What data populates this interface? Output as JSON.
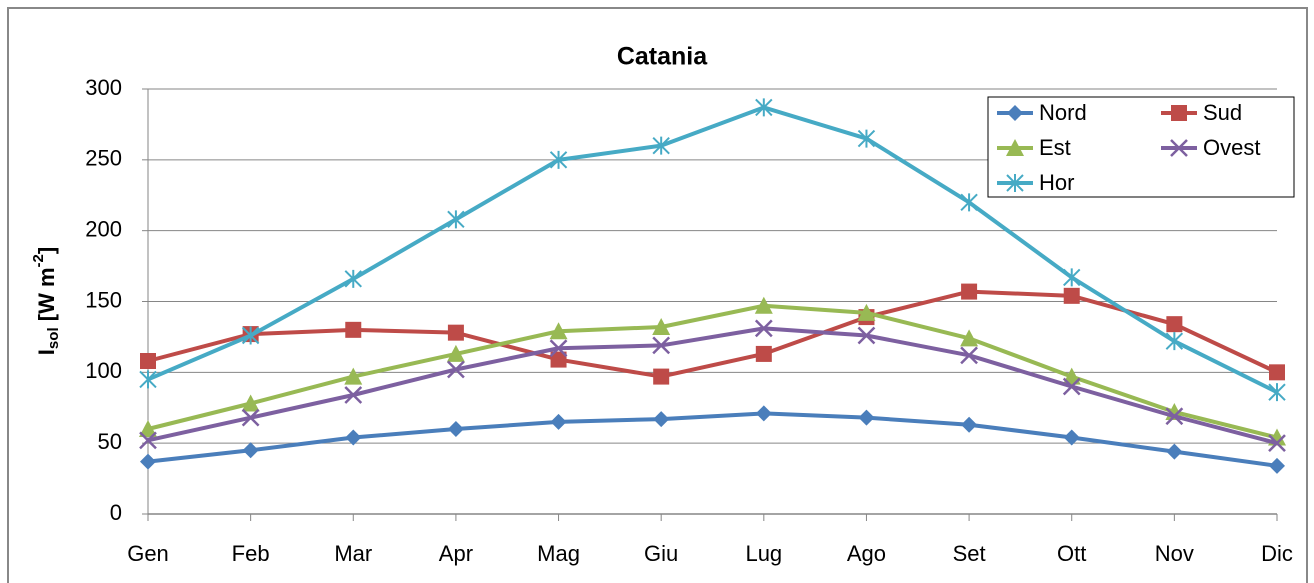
{
  "chart_data": {
    "type": "line",
    "title": "Catania",
    "y_label": {
      "text": "I",
      "sub": "sol",
      "mid": " [W m",
      "sup": "-2",
      "end": "]"
    },
    "categories": [
      "Gen",
      "Feb",
      "Mar",
      "Apr",
      "Mag",
      "Giu",
      "Lug",
      "Ago",
      "Set",
      "Ott",
      "Nov",
      "Dic"
    ],
    "series": [
      {
        "name": "Nord",
        "color": "#4a7ebb",
        "marker": "diamond",
        "values": [
          37,
          45,
          54,
          60,
          65,
          67,
          71,
          68,
          63,
          54,
          44,
          34
        ]
      },
      {
        "name": "Sud",
        "color": "#be4b48",
        "marker": "square",
        "values": [
          108,
          127,
          130,
          128,
          109,
          97,
          113,
          139,
          157,
          154,
          134,
          100
        ]
      },
      {
        "name": "Est",
        "color": "#98b954",
        "marker": "triangle",
        "values": [
          60,
          78,
          97,
          113,
          129,
          132,
          147,
          142,
          124,
          97,
          72,
          54
        ]
      },
      {
        "name": "Ovest",
        "color": "#7d60a0",
        "marker": "x",
        "values": [
          52,
          68,
          84,
          102,
          117,
          119,
          131,
          126,
          112,
          90,
          69,
          50
        ]
      },
      {
        "name": "Hor",
        "color": "#46aac5",
        "marker": "star",
        "values": [
          95,
          126,
          166,
          208,
          250,
          260,
          287,
          265,
          220,
          167,
          122,
          86
        ]
      }
    ],
    "ylim": [
      0,
      300
    ],
    "yticks": [
      0,
      50,
      100,
      150,
      200,
      250,
      300
    ],
    "grid": true,
    "legend": "top-right"
  }
}
